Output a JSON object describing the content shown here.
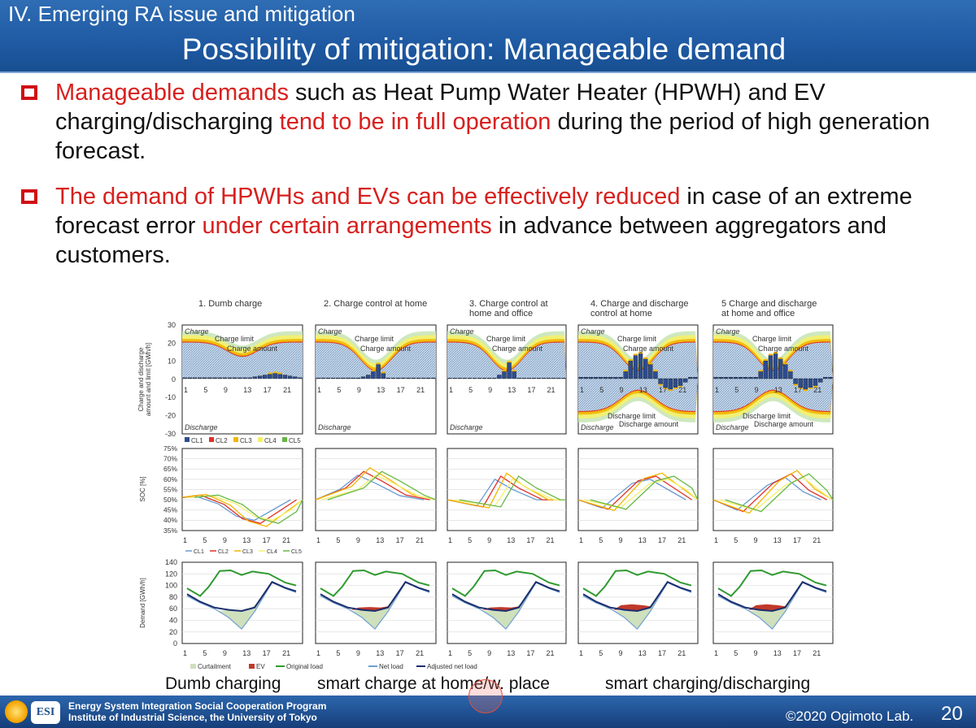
{
  "header": {
    "section_label": "IV. Emerging RA issue and mitigation",
    "title": "Possibility of mitigation: Manageable demand"
  },
  "bullets": [
    {
      "red1": "Manageable demands",
      "text1": " such as Heat Pump Water Heater (HPWH) and EV charging/discharging ",
      "red2": "tend to be in full operation",
      "text2": " during the period of high generation forecast."
    },
    {
      "red1": "The demand of HPWHs and EVs can be effectively reduced",
      "text1": " in case of an extreme forecast error ",
      "red2": "under certain arrangements",
      "text2": " in advance between aggregators and customers."
    }
  ],
  "figure": {
    "scenarios": [
      {
        "title_lines": [
          "1. Dumb charge"
        ]
      },
      {
        "title_lines": [
          "2. Charge control at home"
        ]
      },
      {
        "title_lines": [
          "3. Charge control at",
          "home and office"
        ]
      },
      {
        "title_lines": [
          "4. Charge and discharge",
          "control at home"
        ]
      },
      {
        "title_lines": [
          "5 Charge and discharge",
          "at home and office"
        ]
      }
    ],
    "charge_panel": {
      "ylabel_lines": [
        "Charge and discharge",
        "amount and limit [GWh/h]"
      ],
      "yticks": [
        "30",
        "20",
        "10",
        "0",
        "-10",
        "-20",
        "-30"
      ],
      "xticks": [
        "1",
        "5",
        "9",
        "13",
        "17",
        "21"
      ],
      "charge": "Charge",
      "discharge": "Discharge",
      "charge_limit": "Charge limit",
      "charge_amount": "Charge amount",
      "discharge_limit": "Discharge limit",
      "discharge_amount": "Discharge amount",
      "legend": [
        {
          "name": "CL1",
          "color": "#2e4d8e"
        },
        {
          "name": "CL2",
          "color": "#e0302a"
        },
        {
          "name": "CL3",
          "color": "#f2b600"
        },
        {
          "name": "CL4",
          "color": "#f5f16a"
        },
        {
          "name": "CL5",
          "color": "#66b845"
        }
      ]
    },
    "soc_panel": {
      "ylabel": "SOC [%]",
      "yticks": [
        "75%",
        "70%",
        "65%",
        "60%",
        "55%",
        "50%",
        "45%",
        "40%",
        "35%"
      ],
      "xticks": [
        "1",
        "5",
        "9",
        "13",
        "17",
        "21"
      ],
      "legend": [
        {
          "name": "CL1",
          "color": "#6b9bd2"
        },
        {
          "name": "CL2",
          "color": "#e0302a"
        },
        {
          "name": "CL3",
          "color": "#f2b600"
        },
        {
          "name": "CL4",
          "color": "#f5f16a"
        },
        {
          "name": "CL5",
          "color": "#66b845"
        }
      ]
    },
    "demand_panel": {
      "ylabel": "Demand [GWh/h]",
      "yticks": [
        "140",
        "120",
        "100",
        "80",
        "60",
        "40",
        "20",
        "0"
      ],
      "xticks": [
        "1",
        "5",
        "9",
        "13",
        "17",
        "21"
      ],
      "legend": [
        {
          "name": "Curtailment",
          "color": "#cfe0bd"
        },
        {
          "name": "EV",
          "color": "#c0392b"
        },
        {
          "name": "Original load",
          "color": "#2f9a2f"
        },
        {
          "name": "Net load",
          "color": "#6f9ed1"
        },
        {
          "name": "Adjusted net load",
          "color": "#1c2f6e"
        }
      ]
    },
    "captions": [
      "Dumb charging",
      "smart charge at home/w. place",
      "smart charging/discharging"
    ]
  },
  "footer": {
    "logo_text": "ESI",
    "line1": "Energy System Integration Social Cooperation Program",
    "line2": "Institute of Industrial Science, the University of Tokyo",
    "copyright": "©2020 Ogimoto Lab.",
    "page": "20"
  }
}
